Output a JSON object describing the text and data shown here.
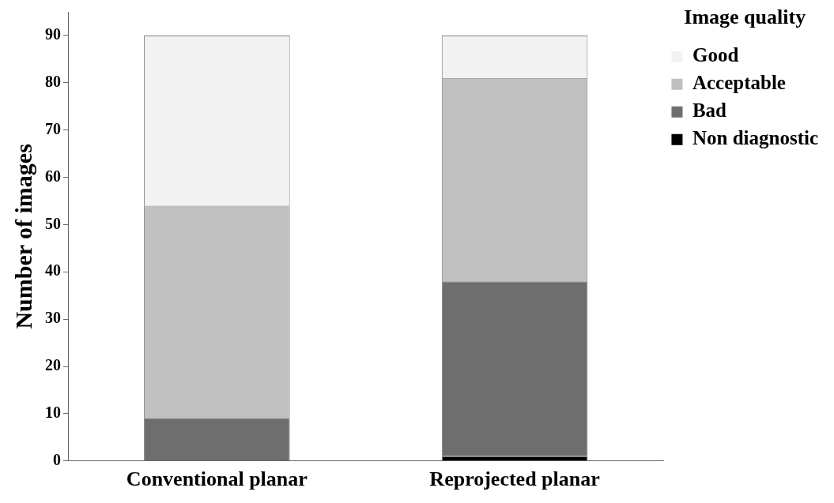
{
  "chart_data": {
    "type": "bar",
    "stacked": true,
    "ylabel": "Number of images",
    "legend_title": "Image quality",
    "legend": "top right",
    "categories": [
      "Conventional planar",
      "Reprojected planar"
    ],
    "series": [
      {
        "name": "Non diagnostic",
        "color": "#000000",
        "values": [
          0,
          1
        ]
      },
      {
        "name": "Bad",
        "color": "#6e6e6e",
        "values": [
          9,
          37
        ]
      },
      {
        "name": "Acceptable",
        "color": "#c0c0c0",
        "values": [
          45,
          43
        ]
      },
      {
        "name": "Good",
        "color": "#f2f2f2",
        "values": [
          36,
          9
        ]
      }
    ],
    "ylim": [
      0,
      95
    ],
    "yticks": [
      0,
      10,
      20,
      30,
      40,
      50,
      60,
      70,
      80,
      90
    ],
    "grid": false
  }
}
